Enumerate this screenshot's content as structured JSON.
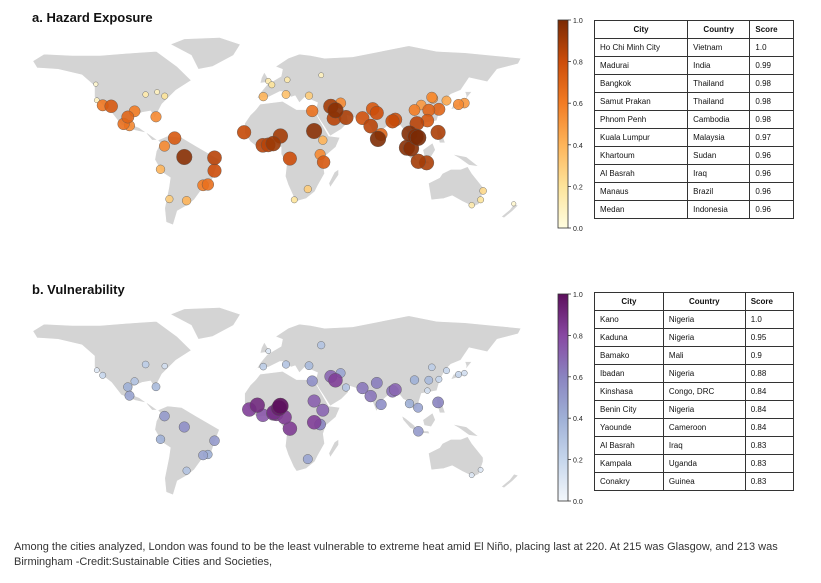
{
  "chart_data": [
    {
      "type": "map",
      "title": "a. Hazard Exposure",
      "colorbar": {
        "range": [
          0,
          1
        ],
        "ticks": [
          "0.0",
          "0.2",
          "0.4",
          "0.6",
          "0.8",
          "1.0"
        ],
        "colormap": "yellow-orange-brown",
        "colors": [
          "#fffde0",
          "#fde49b",
          "#fdb45a",
          "#f27c24",
          "#cc4d0a",
          "#7a2a04"
        ]
      },
      "table": {
        "headers": [
          "City",
          "Country",
          "Score"
        ],
        "rows": [
          [
            "Ho Chi Minh City",
            "Vietnam",
            "1.0"
          ],
          [
            "Madurai",
            "India",
            "0.99"
          ],
          [
            "Bangkok",
            "Thailand",
            "0.98"
          ],
          [
            "Samut Prakan",
            "Thailand",
            "0.98"
          ],
          [
            "Phnom Penh",
            "Cambodia",
            "0.98"
          ],
          [
            "Kuala Lumpur",
            "Malaysia",
            "0.97"
          ],
          [
            "Khartoum",
            "Sudan",
            "0.96"
          ],
          [
            "Al Basrah",
            "Iraq",
            "0.96"
          ],
          [
            "Manaus",
            "Brazil",
            "0.96"
          ],
          [
            "Medan",
            "Indonesia",
            "0.96"
          ]
        ]
      },
      "points": [
        {
          "lon": 106.7,
          "lat": 10.8,
          "v": 1.0
        },
        {
          "lon": 78.1,
          "lat": 9.9,
          "v": 0.99
        },
        {
          "lon": 100.5,
          "lat": 13.7,
          "v": 0.98
        },
        {
          "lon": 104.9,
          "lat": 11.6,
          "v": 0.98
        },
        {
          "lon": 101.7,
          "lat": 3.1,
          "v": 0.97
        },
        {
          "lon": 32.5,
          "lat": 15.6,
          "v": 0.96
        },
        {
          "lon": 47.8,
          "lat": 30.5,
          "v": 0.96
        },
        {
          "lon": -60.0,
          "lat": -3.1,
          "v": 0.96
        },
        {
          "lon": 98.7,
          "lat": 3.6,
          "v": 0.96
        },
        {
          "lon": 72.9,
          "lat": 19.1,
          "v": 0.85
        },
        {
          "lon": 77.2,
          "lat": 28.6,
          "v": 0.8
        },
        {
          "lon": 88.4,
          "lat": 22.6,
          "v": 0.82
        },
        {
          "lon": 67.0,
          "lat": 24.9,
          "v": 0.78
        },
        {
          "lon": 74.3,
          "lat": 31.5,
          "v": 0.75
        },
        {
          "lon": 80.3,
          "lat": 13.1,
          "v": 0.7
        },
        {
          "lon": 90.4,
          "lat": 23.8,
          "v": 0.78
        },
        {
          "lon": 121.5,
          "lat": 31.2,
          "v": 0.7
        },
        {
          "lon": 116.4,
          "lat": 39.9,
          "v": 0.55
        },
        {
          "lon": 113.3,
          "lat": 23.1,
          "v": 0.75
        },
        {
          "lon": 114.3,
          "lat": 30.6,
          "v": 0.7
        },
        {
          "lon": 104.1,
          "lat": 30.7,
          "v": 0.6
        },
        {
          "lon": 108.9,
          "lat": 34.3,
          "v": 0.5
        },
        {
          "lon": 117.2,
          "lat": 39.1,
          "v": 0.5
        },
        {
          "lon": 126.9,
          "lat": 37.5,
          "v": 0.45
        },
        {
          "lon": 139.7,
          "lat": 35.7,
          "v": 0.5
        },
        {
          "lon": 135.5,
          "lat": 34.7,
          "v": 0.55
        },
        {
          "lon": 120.9,
          "lat": 14.6,
          "v": 0.88
        },
        {
          "lon": 106.8,
          "lat": -6.2,
          "v": 0.9
        },
        {
          "lon": 112.7,
          "lat": -7.3,
          "v": 0.88
        },
        {
          "lon": 105.8,
          "lat": 21.0,
          "v": 0.85
        },
        {
          "lon": 3.4,
          "lat": 6.5,
          "v": 0.92
        },
        {
          "lon": 8.5,
          "lat": 12.0,
          "v": 0.9
        },
        {
          "lon": -4.0,
          "lat": 5.3,
          "v": 0.85
        },
        {
          "lon": -0.2,
          "lat": 5.6,
          "v": 0.85
        },
        {
          "lon": -17.4,
          "lat": 14.7,
          "v": 0.82
        },
        {
          "lon": 15.3,
          "lat": -4.3,
          "v": 0.8
        },
        {
          "lon": 39.3,
          "lat": -6.8,
          "v": 0.75
        },
        {
          "lon": 36.8,
          "lat": -1.3,
          "v": 0.55
        },
        {
          "lon": 38.7,
          "lat": 9.0,
          "v": 0.4
        },
        {
          "lon": 31.2,
          "lat": 30.0,
          "v": 0.65
        },
        {
          "lon": 46.7,
          "lat": 24.7,
          "v": 0.85
        },
        {
          "lon": 55.3,
          "lat": 25.3,
          "v": 0.88
        },
        {
          "lon": 51.4,
          "lat": 35.7,
          "v": 0.55
        },
        {
          "lon": 44.4,
          "lat": 33.3,
          "v": 0.9
        },
        {
          "lon": 28.0,
          "lat": -26.2,
          "v": 0.3
        },
        {
          "lon": 18.4,
          "lat": -33.9,
          "v": 0.2
        },
        {
          "lon": -99.1,
          "lat": 19.4,
          "v": 0.55
        },
        {
          "lon": -103.3,
          "lat": 20.7,
          "v": 0.65
        },
        {
          "lon": -100.3,
          "lat": 25.7,
          "v": 0.7
        },
        {
          "lon": -118.2,
          "lat": 34.1,
          "v": 0.62
        },
        {
          "lon": -112.1,
          "lat": 33.4,
          "v": 0.75
        },
        {
          "lon": -95.4,
          "lat": 29.8,
          "v": 0.6
        },
        {
          "lon": -80.2,
          "lat": 25.8,
          "v": 0.55
        },
        {
          "lon": -74.0,
          "lat": 40.7,
          "v": 0.2
        },
        {
          "lon": -87.6,
          "lat": 41.9,
          "v": 0.15
        },
        {
          "lon": -79.4,
          "lat": 43.7,
          "v": 0.1
        },
        {
          "lon": -122.4,
          "lat": 37.8,
          "v": 0.1
        },
        {
          "lon": -123.1,
          "lat": 49.3,
          "v": 0.05
        },
        {
          "lon": -43.2,
          "lat": -22.9,
          "v": 0.65
        },
        {
          "lon": -46.6,
          "lat": -23.5,
          "v": 0.6
        },
        {
          "lon": -38.5,
          "lat": -12.97,
          "v": 0.8
        },
        {
          "lon": -38.5,
          "lat": -3.7,
          "v": 0.85
        },
        {
          "lon": -58.4,
          "lat": -34.6,
          "v": 0.4
        },
        {
          "lon": -70.6,
          "lat": -33.4,
          "v": 0.3
        },
        {
          "lon": -77.0,
          "lat": -12.0,
          "v": 0.4
        },
        {
          "lon": -74.1,
          "lat": 4.7,
          "v": 0.55
        },
        {
          "lon": -66.9,
          "lat": 10.5,
          "v": 0.75
        },
        {
          "lon": -0.1,
          "lat": 51.5,
          "v": 0.15
        },
        {
          "lon": 2.35,
          "lat": 48.9,
          "v": 0.2
        },
        {
          "lon": 12.5,
          "lat": 41.9,
          "v": 0.35
        },
        {
          "lon": -3.7,
          "lat": 40.4,
          "v": 0.4
        },
        {
          "lon": 28.9,
          "lat": 41.0,
          "v": 0.3
        },
        {
          "lon": 37.6,
          "lat": 55.8,
          "v": 0.1
        },
        {
          "lon": 13.4,
          "lat": 52.5,
          "v": 0.15
        },
        {
          "lon": 151.2,
          "lat": -33.9,
          "v": 0.2
        },
        {
          "lon": 144.9,
          "lat": -37.8,
          "v": 0.15
        },
        {
          "lon": 153.0,
          "lat": -27.5,
          "v": 0.25
        },
        {
          "lon": 174.8,
          "lat": -36.8,
          "v": 0.05
        }
      ]
    },
    {
      "type": "map",
      "title": "b. Vulnerability",
      "colorbar": {
        "range": [
          0,
          1
        ],
        "ticks": [
          "0.0",
          "0.2",
          "0.4",
          "0.6",
          "0.8",
          "1.0"
        ],
        "colormap": "white-blue-purple",
        "colors": [
          "#f3f7fb",
          "#c6d6ec",
          "#9fb0d6",
          "#8a84c0",
          "#8848a2",
          "#5c0f5c"
        ]
      },
      "table": {
        "headers": [
          "City",
          "Country",
          "Score"
        ],
        "rows": [
          [
            "Kano",
            "Nigeria",
            "1.0"
          ],
          [
            "Kaduna",
            "Nigeria",
            "0.95"
          ],
          [
            "Bamako",
            "Mali",
            "0.9"
          ],
          [
            "Ibadan",
            "Nigeria",
            "0.88"
          ],
          [
            "Kinshasa",
            "Congo, DRC",
            "0.84"
          ],
          [
            "Benin City",
            "Nigeria",
            "0.84"
          ],
          [
            "Yaounde",
            "Cameroon",
            "0.84"
          ],
          [
            "Al Basrah",
            "Iraq",
            "0.83"
          ],
          [
            "Kampala",
            "Uganda",
            "0.83"
          ],
          [
            "Conakry",
            "Guinea",
            "0.83"
          ]
        ]
      },
      "points": [
        {
          "lon": 8.5,
          "lat": 12.0,
          "v": 1.0
        },
        {
          "lon": 7.4,
          "lat": 10.5,
          "v": 0.95
        },
        {
          "lon": -8.0,
          "lat": 12.6,
          "v": 0.9
        },
        {
          "lon": 3.9,
          "lat": 7.4,
          "v": 0.88
        },
        {
          "lon": 15.3,
          "lat": -4.3,
          "v": 0.84
        },
        {
          "lon": 5.6,
          "lat": 6.3,
          "v": 0.84
        },
        {
          "lon": 11.5,
          "lat": 3.9,
          "v": 0.84
        },
        {
          "lon": 47.8,
          "lat": 30.5,
          "v": 0.83
        },
        {
          "lon": 32.6,
          "lat": 0.3,
          "v": 0.83
        },
        {
          "lon": -13.7,
          "lat": 9.5,
          "v": 0.83
        },
        {
          "lon": 3.4,
          "lat": 6.5,
          "v": 0.8
        },
        {
          "lon": -4.0,
          "lat": 5.3,
          "v": 0.75
        },
        {
          "lon": 38.7,
          "lat": 9.0,
          "v": 0.7
        },
        {
          "lon": 36.8,
          "lat": -1.3,
          "v": 0.6
        },
        {
          "lon": 32.5,
          "lat": 15.6,
          "v": 0.72
        },
        {
          "lon": 31.2,
          "lat": 30.0,
          "v": 0.55
        },
        {
          "lon": 72.9,
          "lat": 19.1,
          "v": 0.65
        },
        {
          "lon": 77.2,
          "lat": 28.6,
          "v": 0.62
        },
        {
          "lon": 88.4,
          "lat": 22.6,
          "v": 0.66
        },
        {
          "lon": 67.0,
          "lat": 24.9,
          "v": 0.64
        },
        {
          "lon": 90.4,
          "lat": 23.8,
          "v": 0.7
        },
        {
          "lon": 80.3,
          "lat": 13.1,
          "v": 0.55
        },
        {
          "lon": 106.8,
          "lat": -6.2,
          "v": 0.5
        },
        {
          "lon": 120.9,
          "lat": 14.6,
          "v": 0.6
        },
        {
          "lon": 106.7,
          "lat": 10.8,
          "v": 0.45
        },
        {
          "lon": 100.5,
          "lat": 13.7,
          "v": 0.4
        },
        {
          "lon": 121.5,
          "lat": 31.2,
          "v": 0.2
        },
        {
          "lon": 116.4,
          "lat": 39.9,
          "v": 0.25
        },
        {
          "lon": 113.3,
          "lat": 23.1,
          "v": 0.15
        },
        {
          "lon": 114.3,
          "lat": 30.6,
          "v": 0.35
        },
        {
          "lon": 104.1,
          "lat": 30.7,
          "v": 0.4
        },
        {
          "lon": 126.9,
          "lat": 37.5,
          "v": 0.2
        },
        {
          "lon": 139.7,
          "lat": 35.7,
          "v": 0.15
        },
        {
          "lon": 135.5,
          "lat": 34.7,
          "v": 0.2
        },
        {
          "lon": 51.4,
          "lat": 35.7,
          "v": 0.45
        },
        {
          "lon": 44.4,
          "lat": 33.3,
          "v": 0.7
        },
        {
          "lon": 55.3,
          "lat": 25.3,
          "v": 0.3
        },
        {
          "lon": 28.9,
          "lat": 41.0,
          "v": 0.35
        },
        {
          "lon": 12.5,
          "lat": 41.9,
          "v": 0.3
        },
        {
          "lon": -3.7,
          "lat": 40.4,
          "v": 0.25
        },
        {
          "lon": -0.1,
          "lat": 51.5,
          "v": 0.1
        },
        {
          "lon": 37.6,
          "lat": 55.8,
          "v": 0.3
        },
        {
          "lon": -74.0,
          "lat": 40.7,
          "v": 0.15
        },
        {
          "lon": -87.6,
          "lat": 41.9,
          "v": 0.25
        },
        {
          "lon": -118.2,
          "lat": 34.1,
          "v": 0.2
        },
        {
          "lon": -95.4,
          "lat": 29.8,
          "v": 0.3
        },
        {
          "lon": -80.2,
          "lat": 25.8,
          "v": 0.35
        },
        {
          "lon": -122.4,
          "lat": 37.8,
          "v": 0.1
        },
        {
          "lon": -99.1,
          "lat": 19.4,
          "v": 0.45
        },
        {
          "lon": -100.3,
          "lat": 25.7,
          "v": 0.4
        },
        {
          "lon": -46.6,
          "lat": -23.5,
          "v": 0.45
        },
        {
          "lon": -43.2,
          "lat": -22.9,
          "v": 0.4
        },
        {
          "lon": -38.5,
          "lat": -12.97,
          "v": 0.5
        },
        {
          "lon": -60.0,
          "lat": -3.1,
          "v": 0.55
        },
        {
          "lon": -74.1,
          "lat": 4.7,
          "v": 0.5
        },
        {
          "lon": -58.4,
          "lat": -34.6,
          "v": 0.3
        },
        {
          "lon": -77.0,
          "lat": -12.0,
          "v": 0.4
        },
        {
          "lon": 28.0,
          "lat": -26.2,
          "v": 0.45
        },
        {
          "lon": 151.2,
          "lat": -33.9,
          "v": 0.1
        },
        {
          "lon": 144.9,
          "lat": -37.8,
          "v": 0.1
        }
      ]
    }
  ],
  "caption": "Among the cities analyzed, London was found to be the least vulnerable to extreme heat amid El Niño, placing last at 220. At 215 was Glasgow, and 213 was Birmingham -Credit:Sustainable Cities and Societies,",
  "colors": {
    "land": "#d4d4d4",
    "ocean": "#ffffff",
    "table_border": "#333333"
  }
}
